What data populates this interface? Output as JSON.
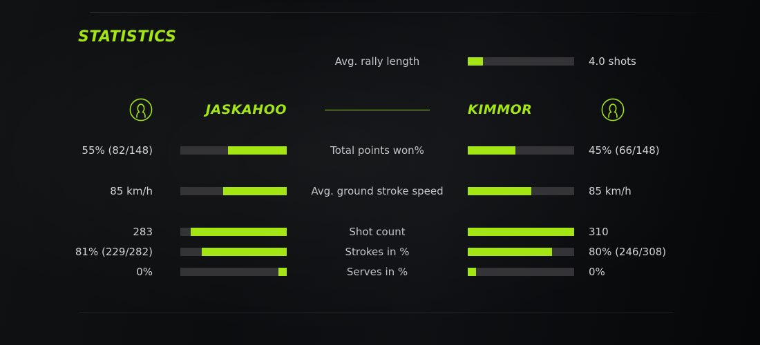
{
  "colors": {
    "accent": "#a4e614",
    "track": "#343437",
    "background": "#0b0d0f",
    "value_text": "#d2d3d5",
    "label_text": "#c3c5c7"
  },
  "title": "STATISTICS",
  "rally": {
    "label": "Avg. rally length",
    "value": "4.0 shots",
    "fill_pct": 14
  },
  "players": {
    "left": {
      "name": "JASKAHOO"
    },
    "right": {
      "name": "KIMMOR"
    }
  },
  "stats": [
    {
      "label": "Total points won%",
      "left_value": "55% (82/148)",
      "right_value": "45% (66/148)",
      "left_pct": 55,
      "right_pct": 45
    },
    {
      "label": "Avg. ground stroke speed",
      "left_value": "85 km/h",
      "right_value": "85 km/h",
      "left_pct": 60,
      "right_pct": 60
    },
    {
      "label": "Shot count",
      "left_value": "283",
      "right_value": "310",
      "left_pct": 90,
      "right_pct": 100
    },
    {
      "label": "Strokes in %",
      "left_value": "81% (229/282)",
      "right_value": "80% (246/308)",
      "left_pct": 80,
      "right_pct": 79
    },
    {
      "label": "Serves in %",
      "left_value": "0%",
      "right_value": "0%",
      "left_pct": 8,
      "right_pct": 8
    }
  ]
}
